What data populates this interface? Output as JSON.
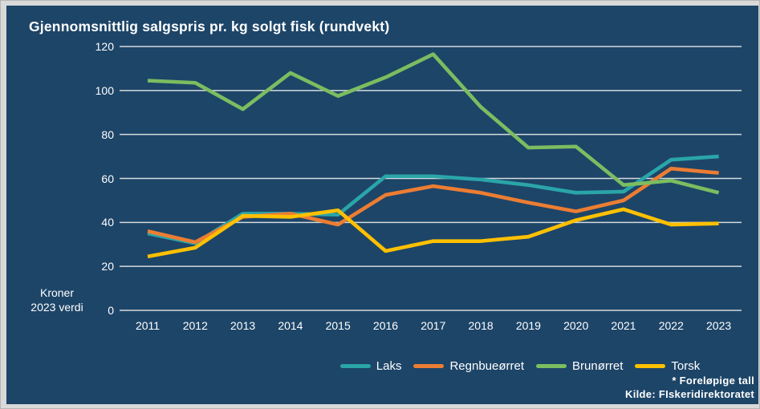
{
  "title": "Gjennomsnittlig salgspris pr. kg solgt fisk (rundvekt)",
  "y_axis_unit": {
    "line1": "Kroner",
    "line2": "2023 verdi"
  },
  "footnote": {
    "line1": "* Foreløpige tall",
    "line2": "Kilde: FIskeridirektoratet"
  },
  "colors": {
    "panel_background": "#1d4568",
    "outer_background": "#d9d9d9",
    "gridline": "#d6dade",
    "text": "#ffffff"
  },
  "chart_data": {
    "type": "line",
    "title": "Gjennomsnittlig salgspris pr. kg solgt fisk (rundvekt)",
    "xlabel": "",
    "ylabel": "Kroner 2023 verdi",
    "ylim": [
      0,
      120
    ],
    "y_ticks": [
      0,
      20,
      40,
      60,
      80,
      100,
      120
    ],
    "grid": true,
    "legend_position": "bottom",
    "categories": [
      "2011",
      "2012",
      "2013",
      "2014",
      "2015",
      "2016",
      "2017",
      "2018",
      "2019",
      "2020",
      "2021",
      "2022",
      "2023"
    ],
    "series": [
      {
        "name": "Laks",
        "color": "#2aa5a8",
        "values": [
          35,
          30.5,
          44,
          44,
          43.5,
          61,
          61,
          59.5,
          57,
          53.5,
          54,
          68.5,
          70
        ]
      },
      {
        "name": "Regnbueørret",
        "color": "#ec7d33",
        "values": [
          36,
          31,
          42.5,
          44,
          39,
          52.5,
          56.5,
          53.5,
          49,
          45,
          50,
          64.5,
          62.5
        ]
      },
      {
        "name": "Brunørret",
        "color": "#7bbd60",
        "values": [
          104.5,
          103.5,
          91.5,
          108,
          97.5,
          106,
          116.5,
          92.5,
          74,
          74.5,
          57,
          59,
          53.5
        ]
      },
      {
        "name": "Torsk",
        "color": "#ffc000",
        "values": [
          24.5,
          28.5,
          43,
          42.5,
          45.5,
          27,
          31.5,
          31.5,
          33.5,
          41,
          46,
          39,
          39.5
        ]
      }
    ]
  }
}
